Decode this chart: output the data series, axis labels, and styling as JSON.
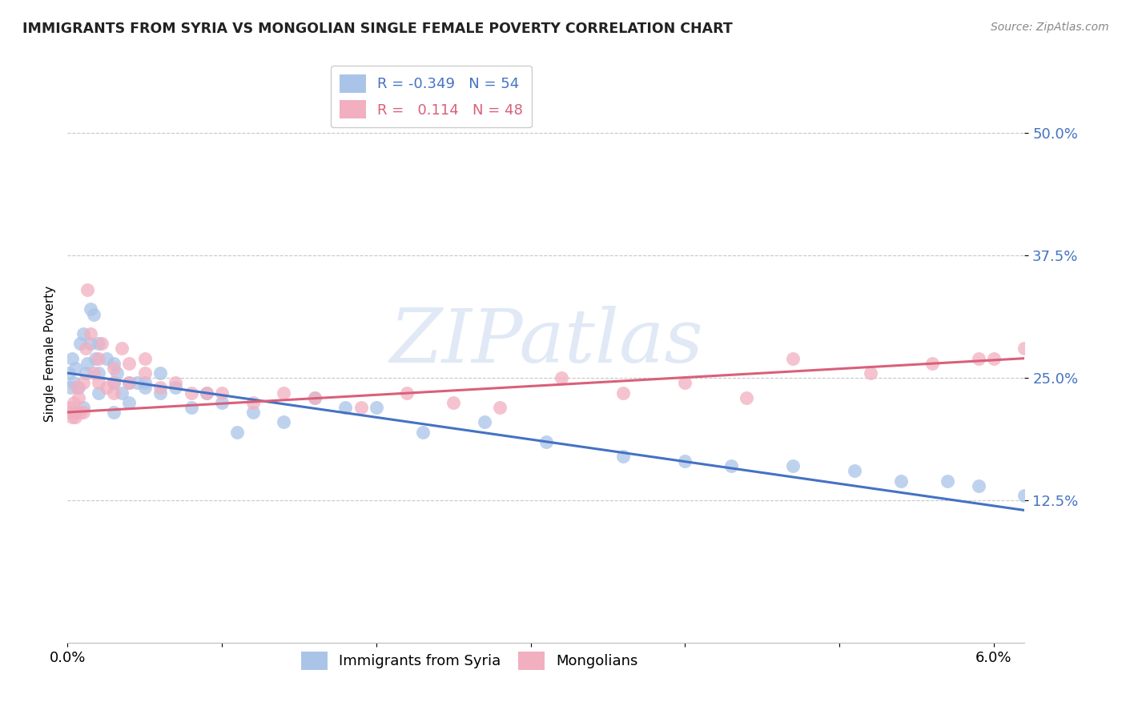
{
  "title": "IMMIGRANTS FROM SYRIA VS MONGOLIAN SINGLE FEMALE POVERTY CORRELATION CHART",
  "source": "Source: ZipAtlas.com",
  "ylabel": "Single Female Poverty",
  "ytick_labels": [
    "50.0%",
    "37.5%",
    "25.0%",
    "12.5%"
  ],
  "ytick_values": [
    0.5,
    0.375,
    0.25,
    0.125
  ],
  "xlim": [
    0.0,
    0.062
  ],
  "ylim": [
    -0.02,
    0.57
  ],
  "syria_color": "#aac4e8",
  "mongolia_color": "#f2afc0",
  "syria_line_color": "#4472c4",
  "mongolia_line_color": "#d9607a",
  "syria_R": -0.349,
  "syria_N": 54,
  "mongolia_R": 0.114,
  "mongolia_N": 48,
  "background_color": "#ffffff",
  "grid_color": "#c8c8c8",
  "watermark": "ZIPatlas",
  "legend_label_syria": "Immigrants from Syria",
  "legend_label_mongolia": "Mongolians",
  "syria_points_x": [
    0.0001,
    0.0002,
    0.0003,
    0.0004,
    0.0005,
    0.0005,
    0.0007,
    0.0008,
    0.001,
    0.001,
    0.0012,
    0.0013,
    0.0015,
    0.0015,
    0.0017,
    0.0018,
    0.002,
    0.002,
    0.002,
    0.0025,
    0.003,
    0.003,
    0.003,
    0.0032,
    0.0035,
    0.004,
    0.004,
    0.0045,
    0.005,
    0.005,
    0.006,
    0.006,
    0.007,
    0.008,
    0.009,
    0.01,
    0.011,
    0.012,
    0.014,
    0.016,
    0.018,
    0.02,
    0.023,
    0.027,
    0.031,
    0.036,
    0.04,
    0.043,
    0.047,
    0.051,
    0.054,
    0.057,
    0.059,
    0.062
  ],
  "syria_points_y": [
    0.255,
    0.24,
    0.27,
    0.245,
    0.26,
    0.215,
    0.24,
    0.285,
    0.295,
    0.22,
    0.255,
    0.265,
    0.32,
    0.285,
    0.315,
    0.27,
    0.285,
    0.255,
    0.235,
    0.27,
    0.265,
    0.245,
    0.215,
    0.255,
    0.235,
    0.245,
    0.225,
    0.245,
    0.245,
    0.24,
    0.255,
    0.235,
    0.24,
    0.22,
    0.235,
    0.225,
    0.195,
    0.215,
    0.205,
    0.23,
    0.22,
    0.22,
    0.195,
    0.205,
    0.185,
    0.17,
    0.165,
    0.16,
    0.16,
    0.155,
    0.145,
    0.145,
    0.14,
    0.13
  ],
  "mongolia_points_x": [
    0.0001,
    0.0002,
    0.0003,
    0.0004,
    0.0005,
    0.0006,
    0.0007,
    0.0008,
    0.001,
    0.001,
    0.0012,
    0.0013,
    0.0015,
    0.0017,
    0.002,
    0.002,
    0.0022,
    0.0025,
    0.003,
    0.003,
    0.003,
    0.0035,
    0.004,
    0.004,
    0.005,
    0.005,
    0.006,
    0.007,
    0.008,
    0.009,
    0.01,
    0.012,
    0.014,
    0.016,
    0.019,
    0.022,
    0.025,
    0.028,
    0.032,
    0.036,
    0.04,
    0.044,
    0.047,
    0.052,
    0.056,
    0.059,
    0.06,
    0.062
  ],
  "mongolia_points_y": [
    0.215,
    0.22,
    0.21,
    0.225,
    0.21,
    0.24,
    0.23,
    0.215,
    0.245,
    0.215,
    0.28,
    0.34,
    0.295,
    0.255,
    0.27,
    0.245,
    0.285,
    0.24,
    0.26,
    0.245,
    0.235,
    0.28,
    0.265,
    0.245,
    0.27,
    0.255,
    0.24,
    0.245,
    0.235,
    0.235,
    0.235,
    0.225,
    0.235,
    0.23,
    0.22,
    0.235,
    0.225,
    0.22,
    0.25,
    0.235,
    0.245,
    0.23,
    0.27,
    0.255,
    0.265,
    0.27,
    0.27,
    0.28
  ],
  "syria_line_x0": 0.0,
  "syria_line_y0": 0.255,
  "syria_line_x1": 0.062,
  "syria_line_y1": 0.115,
  "mongolia_line_x0": 0.0,
  "mongolia_line_y0": 0.215,
  "mongolia_line_x1": 0.062,
  "mongolia_line_y1": 0.27
}
